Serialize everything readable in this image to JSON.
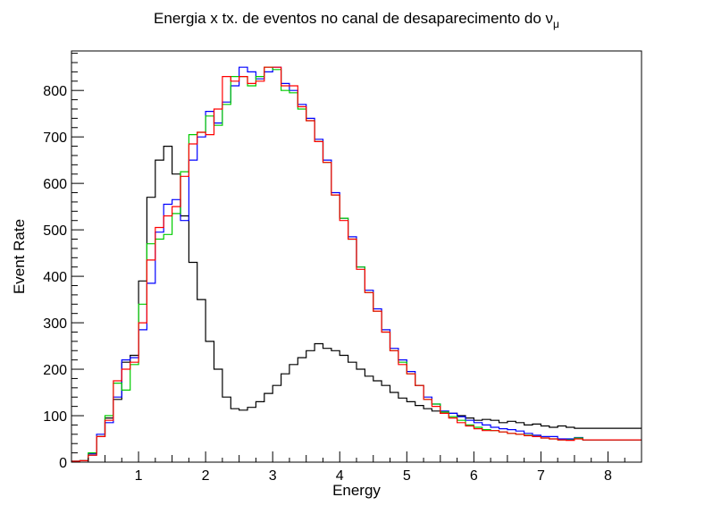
{
  "chart_data": {
    "type": "line",
    "style": "step-histogram",
    "title": "Energia x tx. de eventos no canal de desaparecimento do ",
    "title_symbol": "ν",
    "title_subscript": "μ",
    "xlabel": "Energy",
    "ylabel": "Event Rate",
    "xlim": [
      0,
      8.5
    ],
    "ylim": [
      0,
      885
    ],
    "x_ticks": [
      1,
      2,
      3,
      4,
      5,
      6,
      7,
      8
    ],
    "y_ticks": [
      0,
      100,
      200,
      300,
      400,
      500,
      600,
      700,
      800
    ],
    "bin_width": 0.125,
    "x_start": 0,
    "series": [
      {
        "name": "black",
        "color": "#000000",
        "values": [
          2,
          3,
          15,
          55,
          95,
          135,
          215,
          230,
          390,
          570,
          650,
          680,
          620,
          530,
          430,
          350,
          260,
          200,
          140,
          115,
          112,
          118,
          130,
          148,
          165,
          190,
          210,
          225,
          240,
          255,
          245,
          240,
          230,
          215,
          200,
          185,
          175,
          165,
          150,
          138,
          130,
          122,
          115,
          110,
          105,
          105,
          100,
          95,
          90,
          92,
          90,
          85,
          88,
          85,
          80,
          82,
          78,
          75,
          78,
          75,
          73,
          73,
          73,
          73,
          73,
          73,
          73,
          73
        ]
      },
      {
        "name": "blue",
        "color": "#0000ff",
        "values": [
          2,
          3,
          18,
          60,
          85,
          140,
          220,
          225,
          285,
          385,
          495,
          555,
          565,
          520,
          650,
          700,
          755,
          730,
          775,
          810,
          850,
          840,
          825,
          840,
          850,
          815,
          800,
          770,
          740,
          695,
          650,
          580,
          525,
          485,
          420,
          370,
          330,
          285,
          245,
          220,
          195,
          165,
          140,
          125,
          110,
          105,
          98,
          90,
          85,
          80,
          75,
          72,
          70,
          67,
          62,
          58,
          55,
          55,
          50,
          50,
          53,
          48,
          48,
          48,
          48,
          48,
          48,
          48
        ]
      },
      {
        "name": "green",
        "color": "#00cc00",
        "values": [
          2,
          3,
          20,
          55,
          100,
          170,
          155,
          210,
          340,
          470,
          480,
          490,
          535,
          625,
          705,
          710,
          745,
          725,
          770,
          830,
          830,
          810,
          830,
          850,
          845,
          800,
          795,
          760,
          735,
          690,
          645,
          575,
          525,
          480,
          420,
          365,
          325,
          280,
          240,
          215,
          190,
          165,
          135,
          125,
          108,
          98,
          90,
          80,
          75,
          70,
          68,
          65,
          62,
          60,
          58,
          55,
          52,
          50,
          48,
          48,
          52,
          48,
          48,
          48,
          48,
          48,
          48,
          48
        ]
      },
      {
        "name": "red",
        "color": "#ff0000",
        "values": [
          2,
          3,
          15,
          55,
          90,
          175,
          200,
          215,
          300,
          435,
          505,
          530,
          550,
          615,
          685,
          710,
          705,
          760,
          830,
          820,
          830,
          815,
          820,
          850,
          850,
          810,
          810,
          765,
          735,
          690,
          645,
          575,
          520,
          480,
          415,
          365,
          325,
          280,
          240,
          210,
          190,
          165,
          135,
          120,
          105,
          95,
          85,
          78,
          72,
          68,
          68,
          65,
          62,
          60,
          57,
          55,
          52,
          50,
          48,
          47,
          50,
          48,
          48,
          48,
          48,
          48,
          48,
          48
        ]
      }
    ],
    "legend": "none"
  }
}
